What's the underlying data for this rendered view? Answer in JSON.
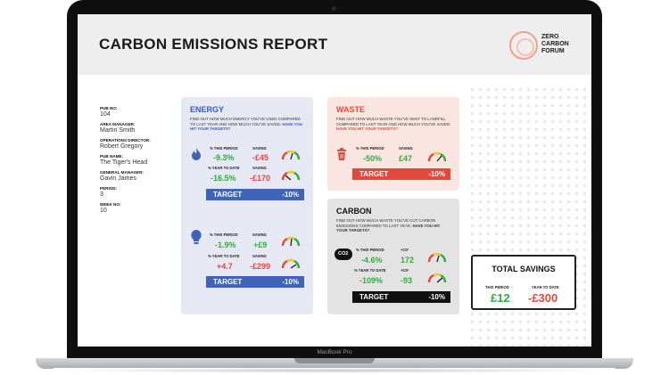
{
  "report": {
    "title": "CARBON EMISSIONS REPORT",
    "logo_lines": [
      "ZERO",
      "CARBON",
      "FORUM"
    ]
  },
  "info": [
    {
      "label": "PUB NO:",
      "value": "104"
    },
    {
      "label": "AREA MANAGER:",
      "value": "Martin Smith"
    },
    {
      "label": "OPERATIONS DIRECTOR:",
      "value": "Robert Gregory"
    },
    {
      "label": "PUB NAME:",
      "value": "The Tiger's Head"
    },
    {
      "label": "GENERAL MANAGER:",
      "value": "Gavin James"
    },
    {
      "label": "PERIOD:",
      "value": "3"
    },
    {
      "label": "WEEK NO:",
      "value": "10"
    }
  ],
  "energy": {
    "title": "ENERGY",
    "desc": "FIND OUT HOW MUCH ENERGY YOU'VE USED COMPARED TO LAST YEAR AND HOW MUCH YOU'VE SAVED.",
    "desc_hl": "HAVE YOU HIT YOUR TARGETS?",
    "electric": {
      "period_label": "% THIS PERIOD",
      "period_saving_label": "SAVING",
      "period_pct": "-9.3%",
      "period_saving": "-£45",
      "ytd_label": "% YEAR TO DATE",
      "ytd_saving_label": "SAVING",
      "ytd_pct": "-16.5%",
      "ytd_saving": "-£170",
      "target_label": "TARGET",
      "target_value": "-10%"
    },
    "light": {
      "period_label": "% THIS PERIOD",
      "period_saving_label": "SAVING",
      "period_pct": "-1.9%",
      "period_saving": "+£9",
      "ytd_label": "% YEAR TO DATE",
      "ytd_saving_label": "SAVING",
      "ytd_pct": "+4.7",
      "ytd_saving": "-£299",
      "target_label": "TARGET",
      "target_value": "-10%"
    }
  },
  "waste": {
    "title": "WASTE",
    "desc": "FIND OUT HOW MUCH WASTE YOU'VE SENT TO LANDFILL COMPARED TO LAST YEAR AND HOW MUCH YOU'VE SAVED.",
    "desc_hl": "HAVE YOU HIT YOUR TARGETS?",
    "period_label": "% THIS PERIOD",
    "saving_label": "SAVING",
    "period_pct": "-50%",
    "saving": "£47",
    "target_label": "TARGET",
    "target_value": "-10%"
  },
  "carbon": {
    "title": "CARBON",
    "desc": "FIND OUT HOW MUCH WASTE YOU'VE CUT CARBON EMISSIONS COMPARED TO LAST YEAR.",
    "desc_hl": "HAVE YOU HIT YOUR TARGETS?",
    "period_label": "% THIS PERIOD",
    "co2_label": "+C0²",
    "period_pct": "-4.6%",
    "period_co2": "172",
    "ytd_label": "% YEAR TO DATE",
    "ytd_co2_label": "+C0²",
    "ytd_pct": "-109%",
    "ytd_co2": "-93",
    "target_label": "TARGET",
    "target_value": "-10%",
    "icon_text": "CO2"
  },
  "total": {
    "title": "TOTAL SAVINGS",
    "period_label": "THIS PERIOD",
    "ytd_label": "YEAR TO DATE",
    "period_value": "£12",
    "ytd_value": "-£300"
  },
  "device": {
    "label": "MacBook Pro"
  },
  "colors": {
    "energy_target": "#3f63b7",
    "waste_target": "#e2493e",
    "carbon_target": "#111111",
    "green": "#2fae3d",
    "red": "#e2493e"
  }
}
